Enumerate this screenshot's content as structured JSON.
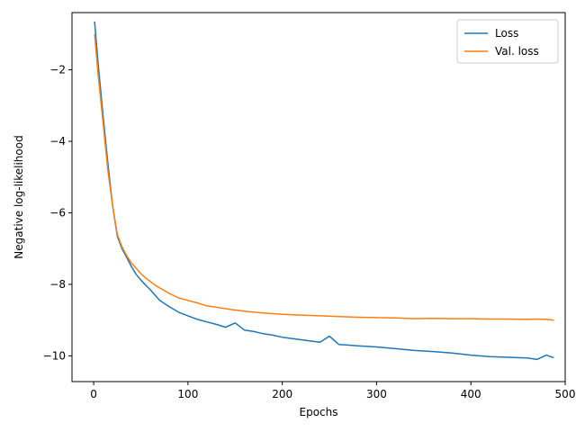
{
  "chart_data": {
    "type": "line",
    "title": "",
    "xlabel": "Epochs",
    "ylabel": "Negative log-likelihood",
    "xlim": [
      -23,
      500
    ],
    "ylim": [
      -10.72,
      -0.4
    ],
    "xticks": [
      0,
      100,
      200,
      300,
      400,
      500
    ],
    "yticks": [
      -10,
      -8,
      -6,
      -4,
      -2
    ],
    "xtick_labels": [
      "0",
      "100",
      "200",
      "300",
      "400",
      "500"
    ],
    "ytick_labels": [
      "−10",
      "−8",
      "−6",
      "−4",
      "−2"
    ],
    "grid": false,
    "legend": {
      "placement": "top-right"
    },
    "series": [
      {
        "name": "Loss",
        "color": "#1f77b4",
        "x": [
          1,
          5,
          10,
          15,
          20,
          25,
          30,
          35,
          40,
          45,
          50,
          55,
          60,
          65,
          70,
          80,
          90,
          100,
          110,
          120,
          130,
          140,
          150,
          160,
          170,
          180,
          190,
          200,
          220,
          240,
          250,
          260,
          280,
          300,
          320,
          340,
          360,
          380,
          400,
          420,
          440,
          460,
          470,
          480,
          488
        ],
        "y": [
          -0.65,
          -1.9,
          -3.3,
          -4.6,
          -5.8,
          -6.65,
          -7.0,
          -7.25,
          -7.5,
          -7.72,
          -7.88,
          -8.02,
          -8.15,
          -8.3,
          -8.45,
          -8.62,
          -8.78,
          -8.88,
          -8.98,
          -9.05,
          -9.12,
          -9.2,
          -9.08,
          -9.28,
          -9.32,
          -9.38,
          -9.42,
          -9.48,
          -9.55,
          -9.62,
          -9.45,
          -9.68,
          -9.72,
          -9.75,
          -9.8,
          -9.85,
          -9.88,
          -9.92,
          -9.98,
          -10.02,
          -10.04,
          -10.06,
          -10.1,
          -9.98,
          -10.05
        ]
      },
      {
        "name": "Val. loss",
        "color": "#ff7f0e",
        "x": [
          1,
          5,
          10,
          15,
          20,
          25,
          30,
          35,
          40,
          45,
          50,
          55,
          60,
          65,
          70,
          80,
          90,
          100,
          110,
          120,
          130,
          140,
          150,
          160,
          170,
          180,
          190,
          200,
          220,
          240,
          260,
          280,
          300,
          320,
          340,
          360,
          380,
          400,
          420,
          440,
          460,
          470,
          480,
          488
        ],
        "y": [
          -1.0,
          -2.2,
          -3.5,
          -4.8,
          -5.8,
          -6.6,
          -6.95,
          -7.2,
          -7.4,
          -7.55,
          -7.7,
          -7.82,
          -7.92,
          -8.02,
          -8.1,
          -8.25,
          -8.38,
          -8.45,
          -8.52,
          -8.6,
          -8.64,
          -8.68,
          -8.72,
          -8.75,
          -8.78,
          -8.8,
          -8.82,
          -8.84,
          -8.86,
          -8.88,
          -8.9,
          -8.92,
          -8.93,
          -8.94,
          -8.96,
          -8.95,
          -8.96,
          -8.96,
          -8.97,
          -8.97,
          -8.98,
          -8.97,
          -8.98,
          -9.0
        ]
      }
    ]
  }
}
